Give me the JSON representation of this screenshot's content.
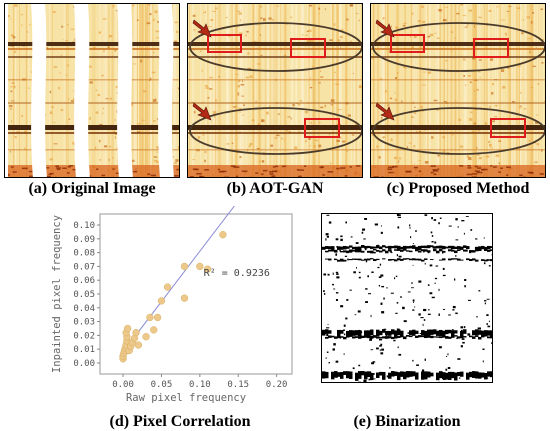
{
  "figure": {
    "captions": {
      "a": "(a) Original Image",
      "b": "(b) AOT-GAN",
      "c": "(c) Proposed Method",
      "d": "(d) Pixel Correlation",
      "e": "(e) Binarization"
    }
  },
  "colors": {
    "texture_base": "#f7e3a6",
    "texture_dark": "#3a1a05",
    "texture_mid": "#c9721e",
    "highlight_red": "#e01b1b",
    "ellipse_dark": "#4a3a2a",
    "arrow_red": "#b22a16",
    "scatter_point": "#ecc98a",
    "fit_line": "#8c8cd8"
  },
  "chart_data": {
    "type": "scatter",
    "title": "",
    "xlabel": "Raw pixel frequency",
    "ylabel": "Inpainted pixel frequency",
    "xlim": [
      -0.03,
      0.22
    ],
    "ylim": [
      -0.008,
      0.108
    ],
    "xticks": [
      "0.00",
      "0.05",
      "0.10",
      "0.15",
      "0.20"
    ],
    "yticks": [
      "0.00",
      "0.01",
      "0.02",
      "0.03",
      "0.04",
      "0.05",
      "0.06",
      "0.07",
      "0.08",
      "0.09",
      "0.10"
    ],
    "annotation": "R² = 0.9236",
    "grid": false,
    "fit_line": {
      "slope": 0.73,
      "intercept": 0.008
    },
    "points": [
      [
        0.0,
        0.003
      ],
      [
        0.0,
        0.005
      ],
      [
        0.001,
        0.007
      ],
      [
        0.002,
        0.009
      ],
      [
        0.003,
        0.011
      ],
      [
        0.004,
        0.013
      ],
      [
        0.005,
        0.016
      ],
      [
        0.005,
        0.019
      ],
      [
        0.004,
        0.022
      ],
      [
        0.006,
        0.025
      ],
      [
        0.008,
        0.009
      ],
      [
        0.01,
        0.012
      ],
      [
        0.012,
        0.015
      ],
      [
        0.015,
        0.018
      ],
      [
        0.017,
        0.022
      ],
      [
        0.02,
        0.013
      ],
      [
        0.03,
        0.019
      ],
      [
        0.035,
        0.033
      ],
      [
        0.04,
        0.024
      ],
      [
        0.045,
        0.033
      ],
      [
        0.05,
        0.045
      ],
      [
        0.058,
        0.055
      ],
      [
        0.08,
        0.047
      ],
      [
        0.08,
        0.07
      ],
      [
        0.1,
        0.07
      ],
      [
        0.11,
        0.068
      ],
      [
        0.13,
        0.093
      ]
    ]
  }
}
